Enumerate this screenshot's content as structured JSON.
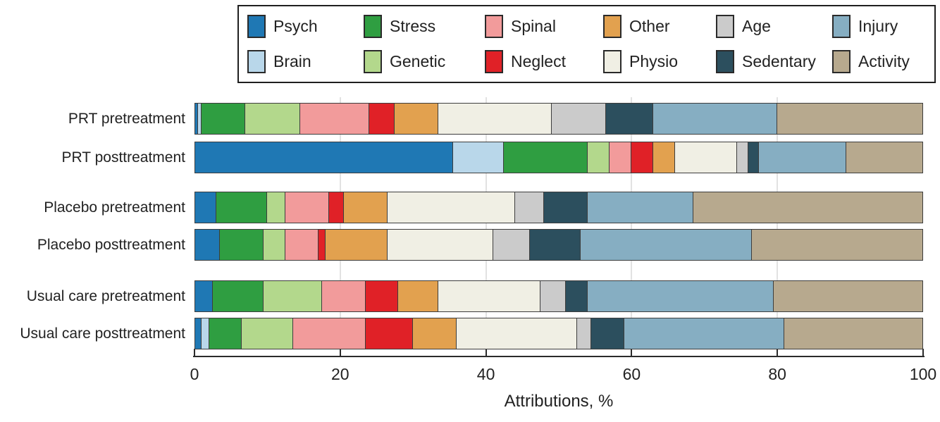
{
  "chart_data": {
    "type": "bar",
    "variant": "horizontal-stacked",
    "title": "",
    "xlabel": "Attributions, %",
    "ylabel": "",
    "xlim": [
      0,
      100
    ],
    "x_ticks": [
      0,
      20,
      40,
      60,
      80,
      100
    ],
    "grid": true,
    "legend_position": "top",
    "categories": [
      "PRT pretreatment",
      "PRT posttreatment",
      "Placebo pretreatment",
      "Placebo posttreatment",
      "Usual care pretreatment",
      "Usual care posttreatment"
    ],
    "series": [
      {
        "name": "Psych",
        "color": "#1f78b4",
        "values": [
          0.5,
          35.5,
          3.0,
          3.5,
          2.5,
          1.0
        ]
      },
      {
        "name": "Brain",
        "color": "#b9d7ea",
        "values": [
          0.5,
          7.0,
          0,
          0,
          0,
          1.0
        ]
      },
      {
        "name": "Stress",
        "color": "#2f9e41",
        "values": [
          6.0,
          11.5,
          7.0,
          6.0,
          7.0,
          4.5
        ]
      },
      {
        "name": "Genetic",
        "color": "#b3d88c",
        "values": [
          7.5,
          3.0,
          2.5,
          3.0,
          8.0,
          7.0
        ]
      },
      {
        "name": "Spinal",
        "color": "#f29b9b",
        "values": [
          9.5,
          3.0,
          6.0,
          4.5,
          6.0,
          10.0
        ]
      },
      {
        "name": "Neglect",
        "color": "#e02127",
        "values": [
          3.5,
          3.0,
          2.0,
          1.0,
          4.5,
          6.5
        ]
      },
      {
        "name": "Other",
        "color": "#e2a14f",
        "values": [
          6.0,
          3.0,
          6.0,
          8.5,
          5.5,
          6.0
        ]
      },
      {
        "name": "Physio",
        "color": "#f0efe4",
        "values": [
          15.5,
          8.5,
          17.5,
          14.5,
          14.0,
          16.5
        ]
      },
      {
        "name": "Age",
        "color": "#cbcbcb",
        "values": [
          7.5,
          1.5,
          4.0,
          5.0,
          3.5,
          2.0
        ]
      },
      {
        "name": "Sedentary",
        "color": "#2c4f5e",
        "values": [
          6.5,
          1.5,
          6.0,
          7.0,
          3.0,
          4.5
        ]
      },
      {
        "name": "Injury",
        "color": "#86aec2",
        "values": [
          17.0,
          12.0,
          14.5,
          23.5,
          25.5,
          22.0
        ]
      },
      {
        "name": "Activity",
        "color": "#b7a98e",
        "values": [
          20.0,
          10.5,
          31.5,
          23.5,
          20.5,
          19.0
        ]
      }
    ],
    "legend_order": [
      "Psych",
      "Stress",
      "Spinal",
      "Other",
      "Age",
      "Injury",
      "Brain",
      "Genetic",
      "Neglect",
      "Physio",
      "Sedentary",
      "Activity"
    ]
  }
}
